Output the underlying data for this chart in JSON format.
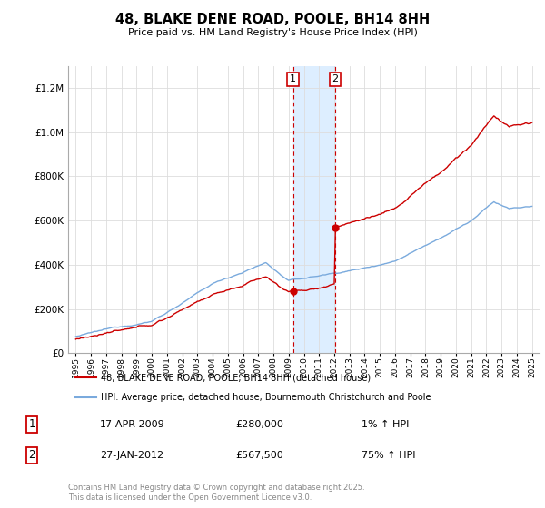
{
  "title": "48, BLAKE DENE ROAD, POOLE, BH14 8HH",
  "subtitle": "Price paid vs. HM Land Registry's House Price Index (HPI)",
  "legend_line1": "48, BLAKE DENE ROAD, POOLE, BH14 8HH (detached house)",
  "legend_line2": "HPI: Average price, detached house, Bournemouth Christchurch and Poole",
  "sale1_date": "17-APR-2009",
  "sale1_price": "£280,000",
  "sale1_hpi": "1% ↑ HPI",
  "sale2_date": "27-JAN-2012",
  "sale2_price": "£567,500",
  "sale2_hpi": "75% ↑ HPI",
  "footer": "Contains HM Land Registry data © Crown copyright and database right 2025.\nThis data is licensed under the Open Government Licence v3.0.",
  "red_color": "#cc0000",
  "blue_color": "#7aaadd",
  "shade_color": "#ddeeff",
  "sale1_x": 2009.29,
  "sale2_x": 2012.07,
  "sale1_price_val": 280000,
  "sale2_price_val": 567500,
  "ylim_max": 1300000,
  "xlim_left": 1994.5,
  "xlim_right": 2025.5
}
